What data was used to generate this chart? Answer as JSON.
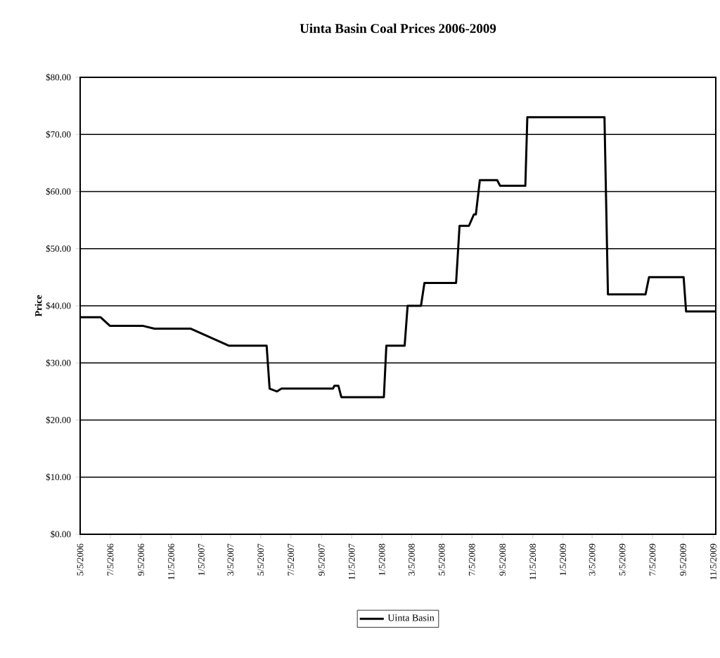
{
  "chart_data": {
    "type": "line",
    "title": "Uinta Basin Coal Prices 2006-2009",
    "ylabel": "Price",
    "x": [
      "2006-05-05",
      "2006-06-15",
      "2006-07-04",
      "2006-09-08",
      "2006-10-02",
      "2006-12-14",
      "2007-03-02",
      "2007-05-17",
      "2007-05-23",
      "2007-06-07",
      "2007-06-16",
      "2007-09-28",
      "2007-10-01",
      "2007-10-09",
      "2007-10-15",
      "2008-01-09",
      "2008-01-14",
      "2008-02-20",
      "2008-02-26",
      "2008-03-24",
      "2008-03-31",
      "2008-06-03",
      "2008-06-10",
      "2008-06-29",
      "2008-07-09",
      "2008-07-13",
      "2008-07-21",
      "2008-08-25",
      "2008-08-31",
      "2008-10-21",
      "2008-10-25",
      "2009-03-30",
      "2009-04-06",
      "2009-06-21",
      "2009-06-28",
      "2009-09-06",
      "2009-09-11",
      "2009-11-10"
    ],
    "series": [
      {
        "name": "Uinta Basin",
        "color": "#000000",
        "values": [
          38,
          38,
          36.5,
          36.5,
          36,
          36,
          33,
          33,
          25.5,
          25,
          25.5,
          25.5,
          26,
          26,
          24,
          24,
          33,
          33,
          40,
          40,
          44,
          44,
          54,
          54,
          56,
          56,
          62,
          62,
          61,
          61,
          73,
          73,
          42,
          42,
          45,
          45,
          39,
          39
        ]
      }
    ],
    "xlim": [
      "2006-05-05",
      "2009-11-10"
    ],
    "xticks": [
      {
        "value": "2006-05-05",
        "label": "5/5/2006"
      },
      {
        "value": "2006-07-05",
        "label": "7/5/2006"
      },
      {
        "value": "2006-09-05",
        "label": "9/5/2006"
      },
      {
        "value": "2006-11-05",
        "label": "11/5/2006"
      },
      {
        "value": "2007-01-05",
        "label": "1/5/2007"
      },
      {
        "value": "2007-03-05",
        "label": "3/5/2007"
      },
      {
        "value": "2007-05-05",
        "label": "5/5/2007"
      },
      {
        "value": "2007-07-05",
        "label": "7/5/2007"
      },
      {
        "value": "2007-09-05",
        "label": "9/5/2007"
      },
      {
        "value": "2007-11-05",
        "label": "11/5/2007"
      },
      {
        "value": "2008-01-05",
        "label": "1/5/2008"
      },
      {
        "value": "2008-03-05",
        "label": "3/5/2008"
      },
      {
        "value": "2008-05-05",
        "label": "5/5/2008"
      },
      {
        "value": "2008-07-05",
        "label": "7/5/2008"
      },
      {
        "value": "2008-09-05",
        "label": "9/5/2008"
      },
      {
        "value": "2008-11-05",
        "label": "11/5/2008"
      },
      {
        "value": "2009-01-05",
        "label": "1/5/2009"
      },
      {
        "value": "2009-03-05",
        "label": "3/5/2009"
      },
      {
        "value": "2009-05-05",
        "label": "5/5/2009"
      },
      {
        "value": "2009-07-05",
        "label": "7/5/2009"
      },
      {
        "value": "2009-09-05",
        "label": "9/5/2009"
      },
      {
        "value": "2009-11-05",
        "label": "11/5/2009"
      }
    ],
    "ylim": [
      0,
      80
    ],
    "yticks": [
      {
        "value": 0,
        "label": "$0.00"
      },
      {
        "value": 10,
        "label": "$10.00"
      },
      {
        "value": 20,
        "label": "$20.00"
      },
      {
        "value": 30,
        "label": "$30.00"
      },
      {
        "value": 40,
        "label": "$40.00"
      },
      {
        "value": 50,
        "label": "$50.00"
      },
      {
        "value": 60,
        "label": "$60.00"
      },
      {
        "value": 70,
        "label": "$70.00"
      },
      {
        "value": 80,
        "label": "$80.00"
      }
    ],
    "grid": "y",
    "legend": "bottom",
    "marker": "none",
    "line_style": "solid"
  }
}
